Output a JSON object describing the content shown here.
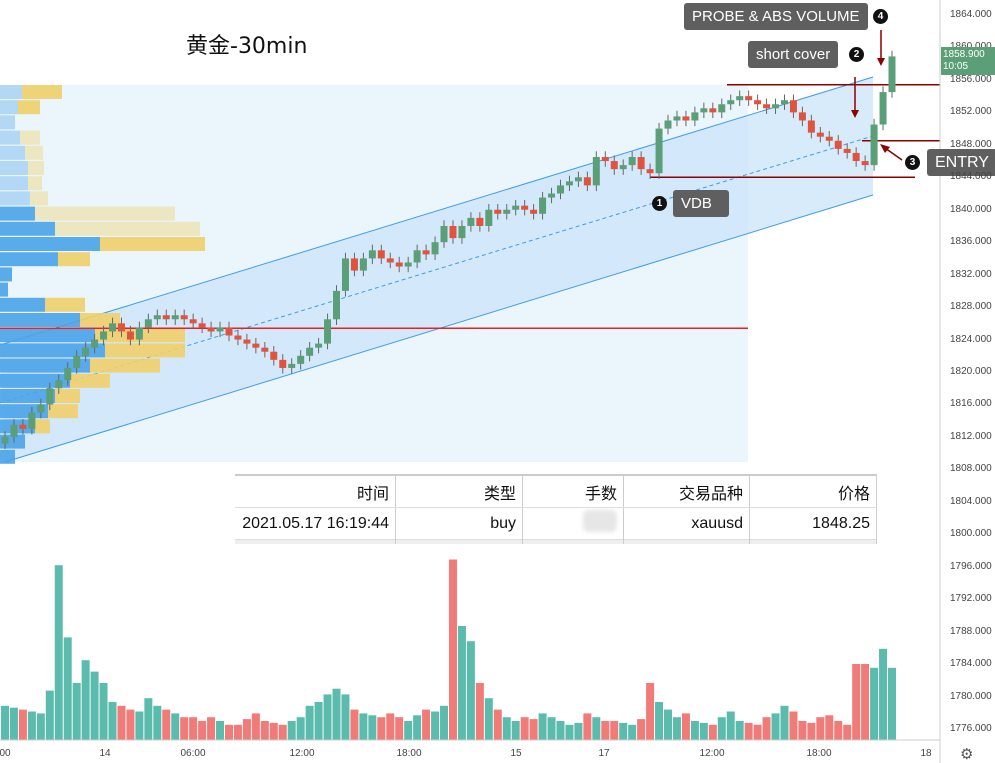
{
  "title": "黄金-30min",
  "callouts": {
    "probe": {
      "label": "PROBE &  ABS VOLUME",
      "number": "4"
    },
    "short_cover": {
      "label": "short cover",
      "number": "2"
    },
    "entry": {
      "label": "ENTRY",
      "number": "3"
    },
    "vdb": {
      "label": "VDB",
      "number": "1"
    }
  },
  "price_axis": [
    "1864.000",
    "1860.000",
    "1856.000",
    "1852.000",
    "1848.000",
    "1844.000",
    "1840.000",
    "1836.000",
    "1832.000",
    "1828.000",
    "1824.000",
    "1820.000",
    "1816.000",
    "1812.000",
    "1808.000",
    "1804.000",
    "1800.000",
    "1796.000",
    "1792.000",
    "1788.000",
    "1784.000",
    "1780.000",
    "1776.000"
  ],
  "last_price": {
    "price": "1858.900",
    "countdown": "10:05",
    "color": "#5b9f78"
  },
  "time_axis": [
    "00",
    "14",
    "06:00",
    "12:00",
    "18:00",
    "15",
    "17",
    "12:00",
    "18:00",
    "18"
  ],
  "trade_table": {
    "headers": [
      "时间",
      "类型",
      "手数",
      "交易品种",
      "价格"
    ],
    "row": {
      "time": "2021.05.17 16:19:44",
      "type": "buy",
      "lots": "",
      "symbol": "xauusd",
      "price": "1848.25"
    }
  },
  "chart_data": {
    "type": "candlestick",
    "timeframe": "30min",
    "colors": {
      "up": "#5b9f78",
      "down": "#e0533f",
      "vol_up": "#5bbcae",
      "vol_down": "#f07b78"
    },
    "ylim": [
      1774,
      1866
    ],
    "close": [
      1812,
      1813.5,
      1813,
      1815,
      1816,
      1818,
      1819,
      1820.5,
      1822,
      1823,
      1824,
      1825,
      1826,
      1825,
      1824,
      1825.5,
      1826.5,
      1827,
      1826.5,
      1827,
      1826.5,
      1826,
      1825.5,
      1825,
      1825.5,
      1824.5,
      1824,
      1823.5,
      1823,
      1822.5,
      1821.5,
      1820.5,
      1821,
      1822,
      1823,
      1823.5,
      1826.5,
      1830,
      1834,
      1832.5,
      1834,
      1835,
      1834,
      1833.5,
      1833,
      1833.5,
      1835,
      1834.5,
      1836,
      1838,
      1836.5,
      1838,
      1839,
      1838,
      1840,
      1839.5,
      1840,
      1840.5,
      1840,
      1839.5,
      1841.5,
      1842,
      1843,
      1843.5,
      1844,
      1843,
      1846.5,
      1846,
      1845,
      1845.5,
      1846.5,
      1845,
      1844.5,
      1850,
      1851,
      1851.5,
      1851,
      1852,
      1852.5,
      1852,
      1853,
      1853.5,
      1854,
      1853.5,
      1853,
      1852.5,
      1853,
      1853.5,
      1852,
      1851,
      1849.5,
      1849,
      1848.5,
      1847.5,
      1847,
      1846,
      1845.5,
      1850.5,
      1854.5,
      1858.9
    ],
    "volume_relative": [
      18,
      17,
      16,
      15,
      14,
      26,
      92,
      54,
      30,
      42,
      36,
      30,
      20,
      18,
      16,
      15,
      22,
      18,
      16,
      14,
      12,
      12,
      10,
      12,
      10,
      8,
      8,
      11,
      14,
      10,
      9,
      8,
      10,
      12,
      18,
      20,
      24,
      27,
      24,
      16,
      14,
      13,
      12,
      14,
      12,
      10,
      13,
      16,
      15,
      18,
      95,
      60,
      52,
      30,
      22,
      16,
      12,
      10,
      12,
      11,
      14,
      12,
      10,
      8,
      9,
      14,
      12,
      10,
      10,
      9,
      8,
      11,
      30,
      20,
      16,
      12,
      14,
      10,
      9,
      8,
      12,
      15,
      10,
      9,
      8,
      12,
      14,
      18,
      15,
      10,
      9,
      12,
      13,
      10,
      8,
      40,
      40,
      38,
      48,
      38
    ],
    "levels": {
      "poc": 1825.4,
      "resistance": 1855.4,
      "entry": 1848.5,
      "vdb": 1844
    },
    "regression_channel": true
  }
}
